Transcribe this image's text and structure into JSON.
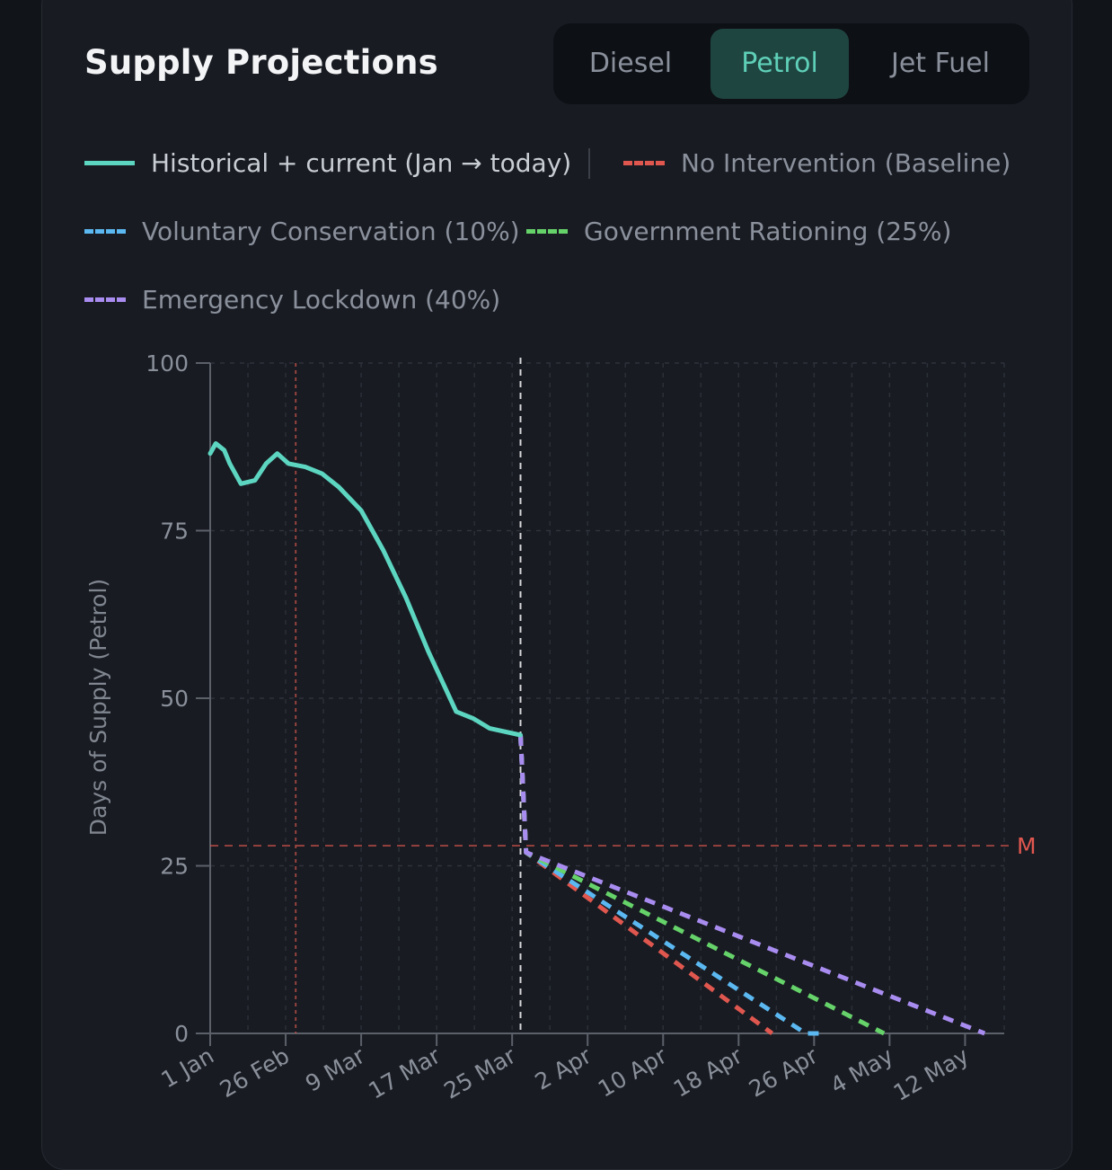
{
  "title": "Supply Projections",
  "tabs": [
    {
      "label": "Diesel",
      "active": false
    },
    {
      "label": "Petrol",
      "active": true
    },
    {
      "label": "Jet Fuel",
      "active": false
    }
  ],
  "legend": [
    {
      "label": "Historical + current (Jan → today)",
      "color": "#5dd6c1",
      "style": "solid"
    },
    {
      "label": "No Intervention (Baseline)",
      "color": "#e0574f",
      "style": "dashed"
    },
    {
      "label": "Voluntary Conservation (10%)",
      "color": "#5bb8f0",
      "style": "dashed"
    },
    {
      "label": "Government Rationing (25%)",
      "color": "#66d36a",
      "style": "dashed"
    },
    {
      "label": "Emergency Lockdown (40%)",
      "color": "#a98cf0",
      "style": "dashed"
    }
  ],
  "chart_data": {
    "type": "line",
    "title": "",
    "xlabel": "",
    "ylabel": "Days of Supply (Petrol)",
    "ylim": [
      0,
      100
    ],
    "yticks": [
      0,
      25,
      50,
      75,
      100
    ],
    "xlim_days": [
      0,
      142
    ],
    "xticks": [
      {
        "label": "1 Jan",
        "day": 0
      },
      {
        "label": "26 Feb",
        "day": 13.5
      },
      {
        "label": "9 Mar",
        "day": 27
      },
      {
        "label": "17 Mar",
        "day": 40.5
      },
      {
        "label": "25 Mar",
        "day": 54
      },
      {
        "label": "2 Apr",
        "day": 67.5
      },
      {
        "label": "10 Apr",
        "day": 81
      },
      {
        "label": "18 Apr",
        "day": 94.5
      },
      {
        "label": "26 Apr",
        "day": 108
      },
      {
        "label": "4 May",
        "day": 121.5
      },
      {
        "label": "12 May",
        "day": 135
      }
    ],
    "today_day": 55.5,
    "event_marker_day": 15.3,
    "threshold": {
      "value": 28,
      "label": "M",
      "color": "#e0574f"
    },
    "series": [
      {
        "name": "Historical + current (Jan → today)",
        "style": "solid",
        "color": "#5dd6c1",
        "points": [
          [
            0,
            86.5
          ],
          [
            1,
            88
          ],
          [
            2.5,
            87
          ],
          [
            3.5,
            85
          ],
          [
            5.5,
            82
          ],
          [
            8,
            82.5
          ],
          [
            10,
            85
          ],
          [
            12,
            86.5
          ],
          [
            14,
            85
          ],
          [
            17,
            84.5
          ],
          [
            20,
            83.5
          ],
          [
            23,
            81.5
          ],
          [
            27,
            78
          ],
          [
            31,
            72
          ],
          [
            35,
            65
          ],
          [
            39,
            57
          ],
          [
            44,
            48
          ],
          [
            47,
            47
          ],
          [
            50,
            45.5
          ],
          [
            55.5,
            44.5
          ]
        ]
      },
      {
        "name": "No Intervention (Baseline)",
        "style": "dashed",
        "color": "#e0574f",
        "points": [
          [
            55.5,
            44.5
          ],
          [
            56.5,
            27
          ],
          [
            100.5,
            0
          ]
        ]
      },
      {
        "name": "Voluntary Conservation (10%)",
        "style": "dashed",
        "color": "#5bb8f0",
        "points": [
          [
            55.5,
            44.5
          ],
          [
            56.5,
            27
          ],
          [
            106.5,
            0
          ],
          [
            109.5,
            0
          ]
        ]
      },
      {
        "name": "Government Rationing (25%)",
        "style": "dashed",
        "color": "#66d36a",
        "points": [
          [
            55.5,
            44.5
          ],
          [
            56.5,
            27
          ],
          [
            120.5,
            0
          ]
        ]
      },
      {
        "name": "Emergency Lockdown (40%)",
        "style": "dashed",
        "color": "#a98cf0",
        "points": [
          [
            55.5,
            44.5
          ],
          [
            56.5,
            27
          ],
          [
            138.5,
            0
          ]
        ]
      }
    ]
  }
}
